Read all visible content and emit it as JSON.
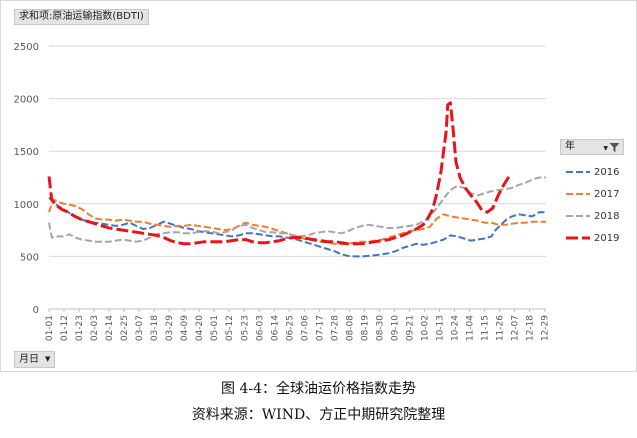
{
  "ui": {
    "value_field": "求和项:原油运输指数(BDTI)",
    "axis_field": "月日",
    "legend_field": "年",
    "figure_caption": "图 4-4：全球油运价格指数走势",
    "source_caption": "资料来源：WIND、方正中期研究院整理"
  },
  "chart_data": {
    "type": "line",
    "title": "",
    "xlabel": "",
    "ylabel": "",
    "ylim": [
      0,
      2500
    ],
    "yticks": [
      0,
      500,
      1000,
      1500,
      2000,
      2500
    ],
    "grid": true,
    "legend_position": "right",
    "x_tick_labels": [
      "01-01",
      "01-12",
      "01-23",
      "02-03",
      "02-14",
      "02-25",
      "03-07",
      "03-18",
      "03-29",
      "04-09",
      "04-20",
      "05-01",
      "05-12",
      "05-23",
      "06-03",
      "06-14",
      "06-25",
      "07-06",
      "07-17",
      "07-28",
      "08-08",
      "08-19",
      "08-30",
      "09-10",
      "09-21",
      "10-02",
      "10-13",
      "10-24",
      "11-04",
      "11-15",
      "11-26",
      "12-07",
      "12-18",
      "12-29"
    ],
    "series": [
      {
        "name": "2016",
        "color": "#4472c4",
        "points": [
          [
            1,
            1060
          ],
          [
            5,
            1000
          ],
          [
            10,
            960
          ],
          [
            15,
            920
          ],
          [
            20,
            880
          ],
          [
            25,
            850
          ],
          [
            30,
            830
          ],
          [
            35,
            820
          ],
          [
            40,
            810
          ],
          [
            45,
            800
          ],
          [
            50,
            790
          ],
          [
            55,
            800
          ],
          [
            60,
            820
          ],
          [
            65,
            790
          ],
          [
            70,
            760
          ],
          [
            75,
            770
          ],
          [
            80,
            800
          ],
          [
            85,
            830
          ],
          [
            90,
            810
          ],
          [
            95,
            790
          ],
          [
            100,
            770
          ],
          [
            105,
            760
          ],
          [
            110,
            740
          ],
          [
            115,
            730
          ],
          [
            120,
            720
          ],
          [
            125,
            710
          ],
          [
            130,
            700
          ],
          [
            135,
            690
          ],
          [
            140,
            700
          ],
          [
            145,
            720
          ],
          [
            150,
            720
          ],
          [
            155,
            710
          ],
          [
            160,
            700
          ],
          [
            165,
            690
          ],
          [
            170,
            690
          ],
          [
            175,
            680
          ],
          [
            180,
            670
          ],
          [
            185,
            650
          ],
          [
            190,
            630
          ],
          [
            195,
            610
          ],
          [
            200,
            590
          ],
          [
            205,
            570
          ],
          [
            210,
            550
          ],
          [
            215,
            520
          ],
          [
            220,
            505
          ],
          [
            225,
            500
          ],
          [
            230,
            500
          ],
          [
            235,
            505
          ],
          [
            240,
            510
          ],
          [
            245,
            520
          ],
          [
            250,
            530
          ],
          [
            255,
            550
          ],
          [
            260,
            580
          ],
          [
            265,
            600
          ],
          [
            270,
            620
          ],
          [
            275,
            610
          ],
          [
            280,
            620
          ],
          [
            285,
            640
          ],
          [
            290,
            660
          ],
          [
            295,
            700
          ],
          [
            300,
            690
          ],
          [
            305,
            670
          ],
          [
            310,
            650
          ],
          [
            315,
            660
          ],
          [
            320,
            670
          ],
          [
            325,
            690
          ],
          [
            328,
            750
          ],
          [
            332,
            800
          ],
          [
            336,
            850
          ],
          [
            340,
            880
          ],
          [
            345,
            900
          ],
          [
            350,
            890
          ],
          [
            355,
            880
          ],
          [
            360,
            920
          ],
          [
            365,
            920
          ]
        ]
      },
      {
        "name": "2017",
        "color": "#ed7d31",
        "points": [
          [
            1,
            920
          ],
          [
            4,
            1040
          ],
          [
            8,
            1020
          ],
          [
            12,
            1000
          ],
          [
            16,
            990
          ],
          [
            20,
            980
          ],
          [
            25,
            950
          ],
          [
            30,
            900
          ],
          [
            35,
            860
          ],
          [
            40,
            850
          ],
          [
            45,
            850
          ],
          [
            50,
            840
          ],
          [
            55,
            850
          ],
          [
            60,
            840
          ],
          [
            65,
            830
          ],
          [
            70,
            830
          ],
          [
            75,
            810
          ],
          [
            80,
            800
          ],
          [
            85,
            790
          ],
          [
            90,
            780
          ],
          [
            95,
            790
          ],
          [
            100,
            790
          ],
          [
            105,
            800
          ],
          [
            110,
            790
          ],
          [
            115,
            780
          ],
          [
            120,
            770
          ],
          [
            125,
            760
          ],
          [
            130,
            750
          ],
          [
            135,
            760
          ],
          [
            140,
            790
          ],
          [
            145,
            820
          ],
          [
            150,
            800
          ],
          [
            155,
            790
          ],
          [
            160,
            780
          ],
          [
            165,
            760
          ],
          [
            170,
            740
          ],
          [
            175,
            720
          ],
          [
            180,
            700
          ],
          [
            185,
            680
          ],
          [
            190,
            660
          ],
          [
            195,
            650
          ],
          [
            200,
            640
          ],
          [
            205,
            630
          ],
          [
            210,
            620
          ],
          [
            215,
            615
          ],
          [
            220,
            620
          ],
          [
            225,
            630
          ],
          [
            230,
            640
          ],
          [
            235,
            640
          ],
          [
            240,
            650
          ],
          [
            245,
            660
          ],
          [
            250,
            680
          ],
          [
            255,
            700
          ],
          [
            260,
            720
          ],
          [
            265,
            740
          ],
          [
            270,
            750
          ],
          [
            275,
            760
          ],
          [
            280,
            780
          ],
          [
            285,
            860
          ],
          [
            290,
            900
          ],
          [
            295,
            880
          ],
          [
            300,
            870
          ],
          [
            305,
            860
          ],
          [
            310,
            850
          ],
          [
            315,
            840
          ],
          [
            320,
            820
          ],
          [
            325,
            820
          ],
          [
            330,
            800
          ],
          [
            335,
            800
          ],
          [
            340,
            810
          ],
          [
            345,
            820
          ],
          [
            350,
            820
          ],
          [
            355,
            830
          ],
          [
            360,
            830
          ],
          [
            365,
            830
          ]
        ]
      },
      {
        "name": "2018",
        "color": "#a5a5a5",
        "points": [
          [
            1,
            820
          ],
          [
            3,
            680
          ],
          [
            8,
            690
          ],
          [
            12,
            690
          ],
          [
            16,
            710
          ],
          [
            20,
            680
          ],
          [
            25,
            660
          ],
          [
            30,
            650
          ],
          [
            35,
            640
          ],
          [
            40,
            640
          ],
          [
            45,
            640
          ],
          [
            50,
            650
          ],
          [
            55,
            660
          ],
          [
            60,
            650
          ],
          [
            65,
            640
          ],
          [
            70,
            650
          ],
          [
            75,
            680
          ],
          [
            80,
            710
          ],
          [
            85,
            720
          ],
          [
            90,
            730
          ],
          [
            95,
            730
          ],
          [
            100,
            720
          ],
          [
            105,
            720
          ],
          [
            110,
            730
          ],
          [
            115,
            740
          ],
          [
            120,
            740
          ],
          [
            125,
            720
          ],
          [
            130,
            730
          ],
          [
            135,
            750
          ],
          [
            140,
            790
          ],
          [
            145,
            800
          ],
          [
            150,
            770
          ],
          [
            155,
            750
          ],
          [
            160,
            730
          ],
          [
            165,
            730
          ],
          [
            170,
            720
          ],
          [
            175,
            720
          ],
          [
            180,
            700
          ],
          [
            185,
            690
          ],
          [
            190,
            700
          ],
          [
            195,
            720
          ],
          [
            200,
            730
          ],
          [
            205,
            740
          ],
          [
            210,
            730
          ],
          [
            215,
            720
          ],
          [
            220,
            740
          ],
          [
            225,
            770
          ],
          [
            230,
            790
          ],
          [
            235,
            800
          ],
          [
            240,
            790
          ],
          [
            245,
            780
          ],
          [
            250,
            770
          ],
          [
            255,
            770
          ],
          [
            260,
            780
          ],
          [
            265,
            790
          ],
          [
            270,
            800
          ],
          [
            275,
            830
          ],
          [
            280,
            880
          ],
          [
            285,
            960
          ],
          [
            290,
            1050
          ],
          [
            295,
            1130
          ],
          [
            300,
            1170
          ],
          [
            305,
            1150
          ],
          [
            310,
            1100
          ],
          [
            315,
            1080
          ],
          [
            320,
            1100
          ],
          [
            325,
            1120
          ],
          [
            330,
            1130
          ],
          [
            335,
            1140
          ],
          [
            340,
            1150
          ],
          [
            345,
            1180
          ],
          [
            350,
            1200
          ],
          [
            355,
            1230
          ],
          [
            360,
            1250
          ],
          [
            365,
            1250
          ]
        ]
      },
      {
        "name": "2019",
        "color": "#e8141c",
        "points": [
          [
            1,
            1260
          ],
          [
            3,
            1040
          ],
          [
            6,
            990
          ],
          [
            10,
            950
          ],
          [
            15,
            920
          ],
          [
            20,
            880
          ],
          [
            25,
            850
          ],
          [
            30,
            830
          ],
          [
            35,
            810
          ],
          [
            40,
            790
          ],
          [
            45,
            770
          ],
          [
            50,
            760
          ],
          [
            55,
            750
          ],
          [
            60,
            740
          ],
          [
            65,
            730
          ],
          [
            70,
            720
          ],
          [
            75,
            710
          ],
          [
            80,
            700
          ],
          [
            85,
            680
          ],
          [
            90,
            650
          ],
          [
            95,
            630
          ],
          [
            100,
            620
          ],
          [
            105,
            620
          ],
          [
            110,
            630
          ],
          [
            115,
            640
          ],
          [
            120,
            640
          ],
          [
            125,
            640
          ],
          [
            130,
            640
          ],
          [
            135,
            650
          ],
          [
            140,
            660
          ],
          [
            145,
            660
          ],
          [
            150,
            640
          ],
          [
            155,
            630
          ],
          [
            160,
            630
          ],
          [
            165,
            640
          ],
          [
            170,
            650
          ],
          [
            175,
            670
          ],
          [
            180,
            680
          ],
          [
            185,
            680
          ],
          [
            190,
            670
          ],
          [
            195,
            660
          ],
          [
            200,
            650
          ],
          [
            205,
            640
          ],
          [
            210,
            640
          ],
          [
            215,
            630
          ],
          [
            220,
            620
          ],
          [
            225,
            620
          ],
          [
            230,
            620
          ],
          [
            235,
            630
          ],
          [
            240,
            640
          ],
          [
            245,
            650
          ],
          [
            250,
            660
          ],
          [
            255,
            680
          ],
          [
            260,
            700
          ],
          [
            265,
            730
          ],
          [
            270,
            760
          ],
          [
            275,
            800
          ],
          [
            278,
            850
          ],
          [
            282,
            950
          ],
          [
            285,
            1100
          ],
          [
            288,
            1300
          ],
          [
            290,
            1500
          ],
          [
            292,
            1700
          ],
          [
            293,
            1940
          ],
          [
            295,
            1960
          ],
          [
            297,
            1700
          ],
          [
            299,
            1400
          ],
          [
            302,
            1250
          ],
          [
            306,
            1150
          ],
          [
            310,
            1080
          ],
          [
            314,
            1020
          ],
          [
            318,
            940
          ],
          [
            322,
            920
          ],
          [
            326,
            960
          ],
          [
            330,
            1080
          ],
          [
            334,
            1180
          ],
          [
            338,
            1260
          ],
          [
            340,
            1280
          ]
        ]
      }
    ]
  }
}
